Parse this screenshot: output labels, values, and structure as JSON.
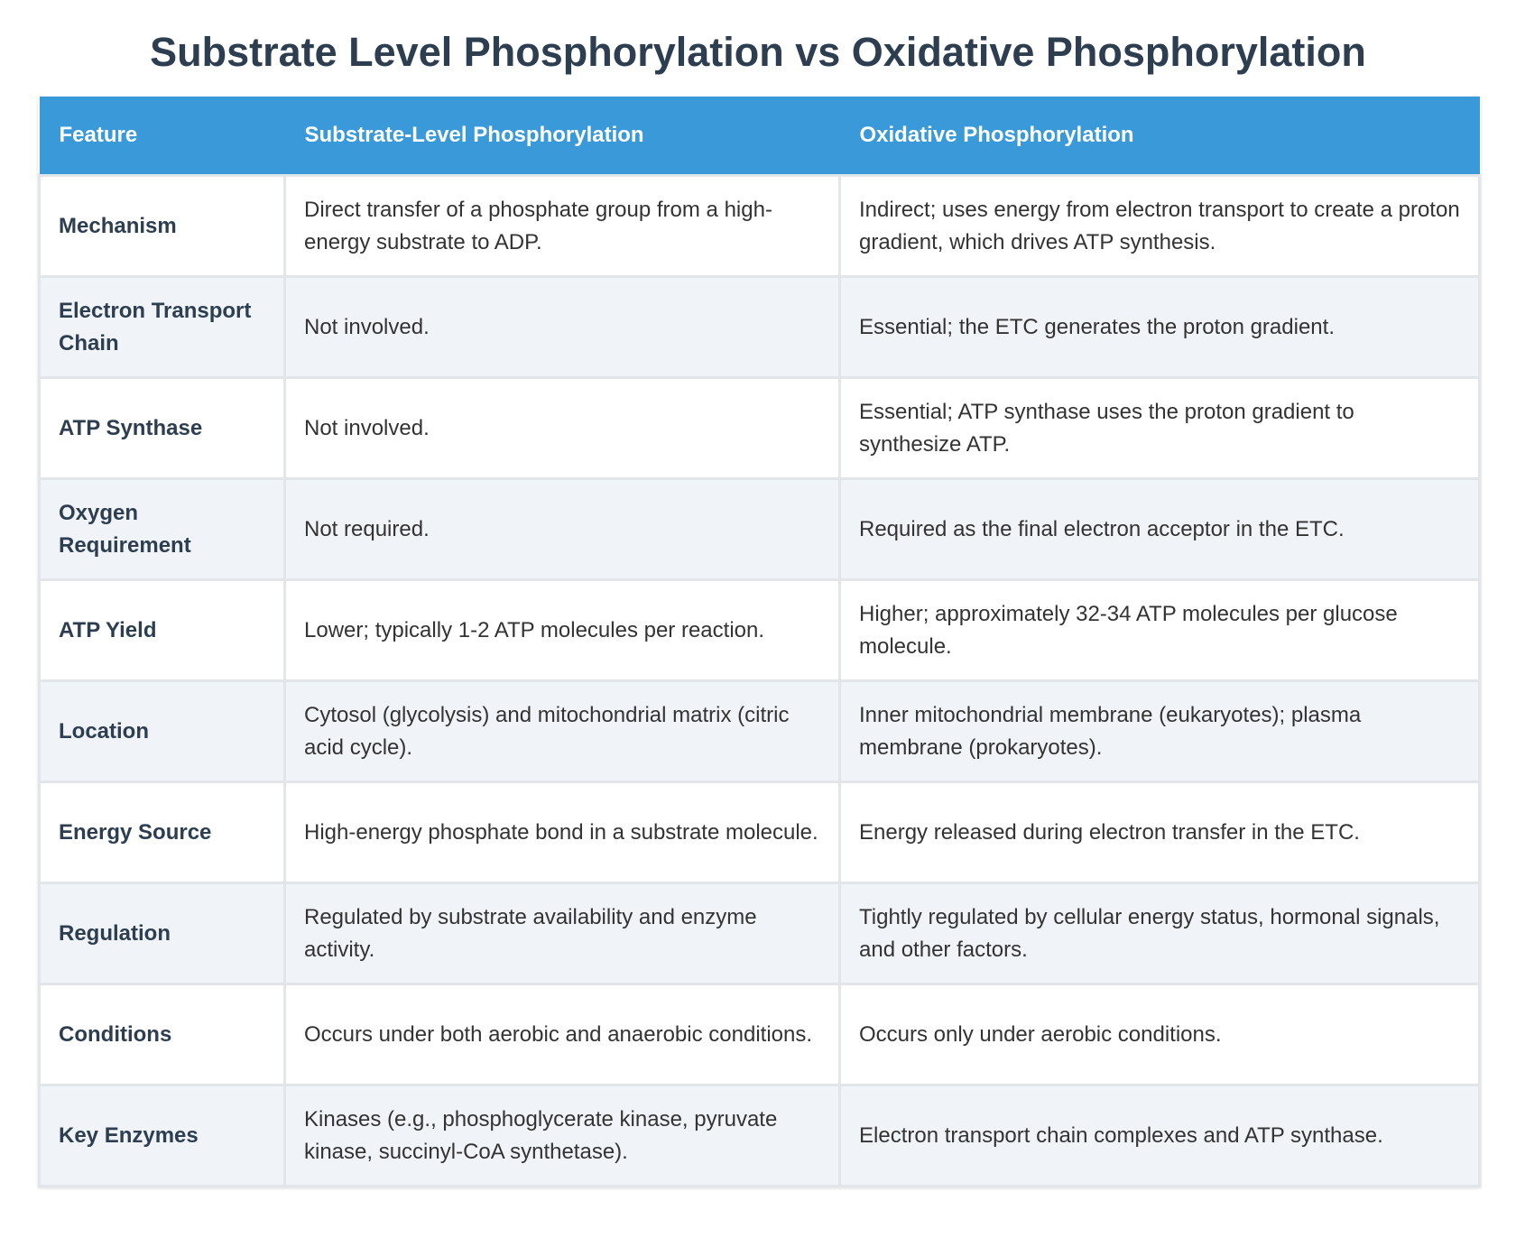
{
  "title": "Substrate Level Phosphorylation vs Oxidative Phosphorylation",
  "table": {
    "headers": [
      "Feature",
      "Substrate-Level Phosphorylation",
      "Oxidative Phosphorylation"
    ],
    "rows": [
      [
        "Mechanism",
        "Direct transfer of a phosphate group from a high-energy substrate to ADP.",
        "Indirect; uses energy from electron transport to create a proton gradient, which drives ATP synthesis."
      ],
      [
        "Electron Transport Chain",
        "Not involved.",
        "Essential; the ETC generates the proton gradient."
      ],
      [
        "ATP Synthase",
        "Not involved.",
        "Essential; ATP synthase uses the proton gradient to synthesize ATP."
      ],
      [
        "Oxygen Requirement",
        "Not required.",
        "Required as the final electron acceptor in the ETC."
      ],
      [
        "ATP Yield",
        "Lower; typically 1-2 ATP molecules per reaction.",
        "Higher; approximately 32-34 ATP molecules per glucose molecule."
      ],
      [
        "Location",
        "Cytosol (glycolysis) and mitochondrial matrix (citric acid cycle).",
        "Inner mitochondrial membrane (eukaryotes); plasma membrane (prokaryotes)."
      ],
      [
        "Energy Source",
        "High-energy phosphate bond in a substrate molecule.",
        "Energy released during electron transfer in the ETC."
      ],
      [
        "Regulation",
        "Regulated by substrate availability and enzyme activity.",
        "Tightly regulated by cellular energy status, hormonal signals, and other factors."
      ],
      [
        "Conditions",
        "Occurs under both aerobic and anaerobic conditions.",
        "Occurs only under aerobic conditions."
      ],
      [
        "Key Enzymes",
        "Kinases (e.g., phosphoglycerate kinase, pyruvate kinase, succinyl-CoA synthetase).",
        "Electron transport chain complexes and ATP synthase."
      ]
    ]
  }
}
